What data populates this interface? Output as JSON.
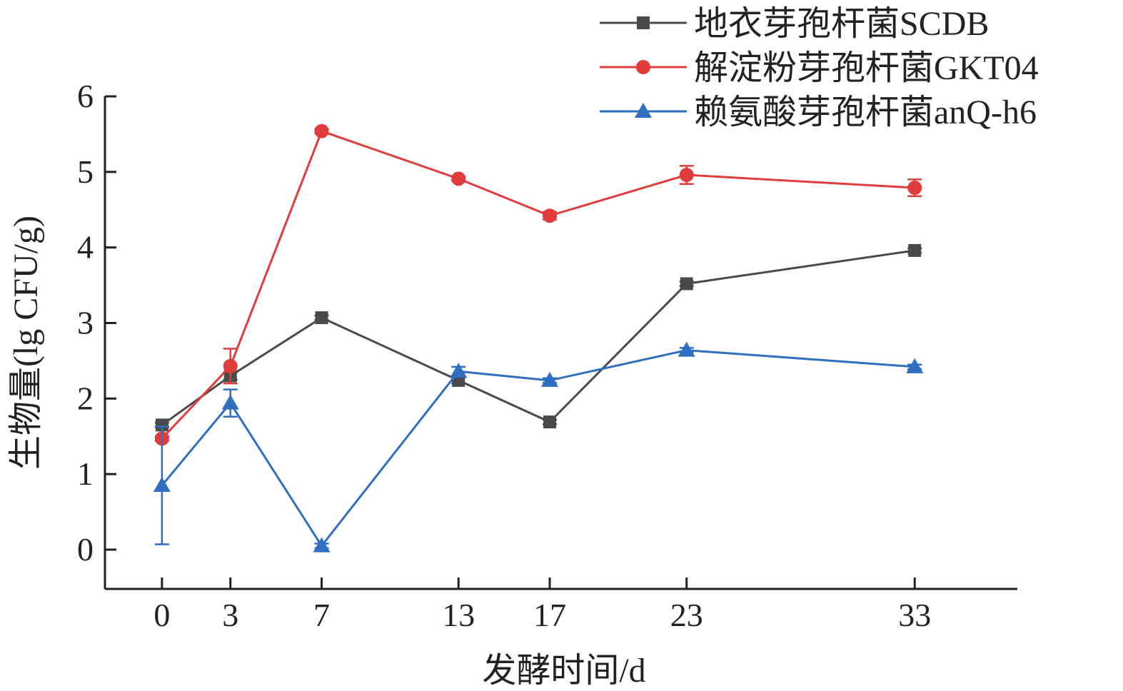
{
  "chart_data": {
    "type": "line",
    "title": "",
    "xlabel": "发酵时间/d",
    "ylabel": "生物量(lg CFU/g)",
    "x": [
      0,
      3,
      7,
      13,
      17,
      23,
      33
    ],
    "xticks": [
      "0",
      "3",
      "7",
      "13",
      "17",
      "23",
      "33"
    ],
    "yticks": [
      "0",
      "1",
      "2",
      "3",
      "4",
      "5",
      "6"
    ],
    "xlim": [
      -2.5,
      37.5
    ],
    "ylim": [
      -0.52,
      6
    ],
    "grid": false,
    "legend_position": "top-right",
    "series": [
      {
        "name": "地衣芽孢杆菌SCDB",
        "color": "#4a4a4a",
        "marker": "square",
        "values": [
          1.65,
          2.3,
          3.07,
          2.24,
          1.69,
          3.52,
          3.96
        ],
        "errors": [
          0.03,
          0.05,
          0.03,
          0.04,
          0.03,
          0.03,
          0.03
        ]
      },
      {
        "name": "解淀粉芽孢杆菌GKT04",
        "color": "#e03c3c",
        "marker": "circle",
        "values": [
          1.47,
          2.43,
          5.54,
          4.91,
          4.42,
          4.96,
          4.79
        ],
        "errors": [
          0.03,
          0.23,
          0.03,
          0.03,
          0.05,
          0.12,
          0.11
        ]
      },
      {
        "name": "赖氨酸芽孢杆菌anQ-h6",
        "color": "#2f6fbf",
        "marker": "triangle",
        "values": [
          0.85,
          1.94,
          0.05,
          2.36,
          2.24,
          2.64,
          2.42
        ],
        "errors": [
          0.78,
          0.18,
          0.03,
          0.06,
          0.03,
          0.03,
          0.03
        ]
      }
    ]
  }
}
